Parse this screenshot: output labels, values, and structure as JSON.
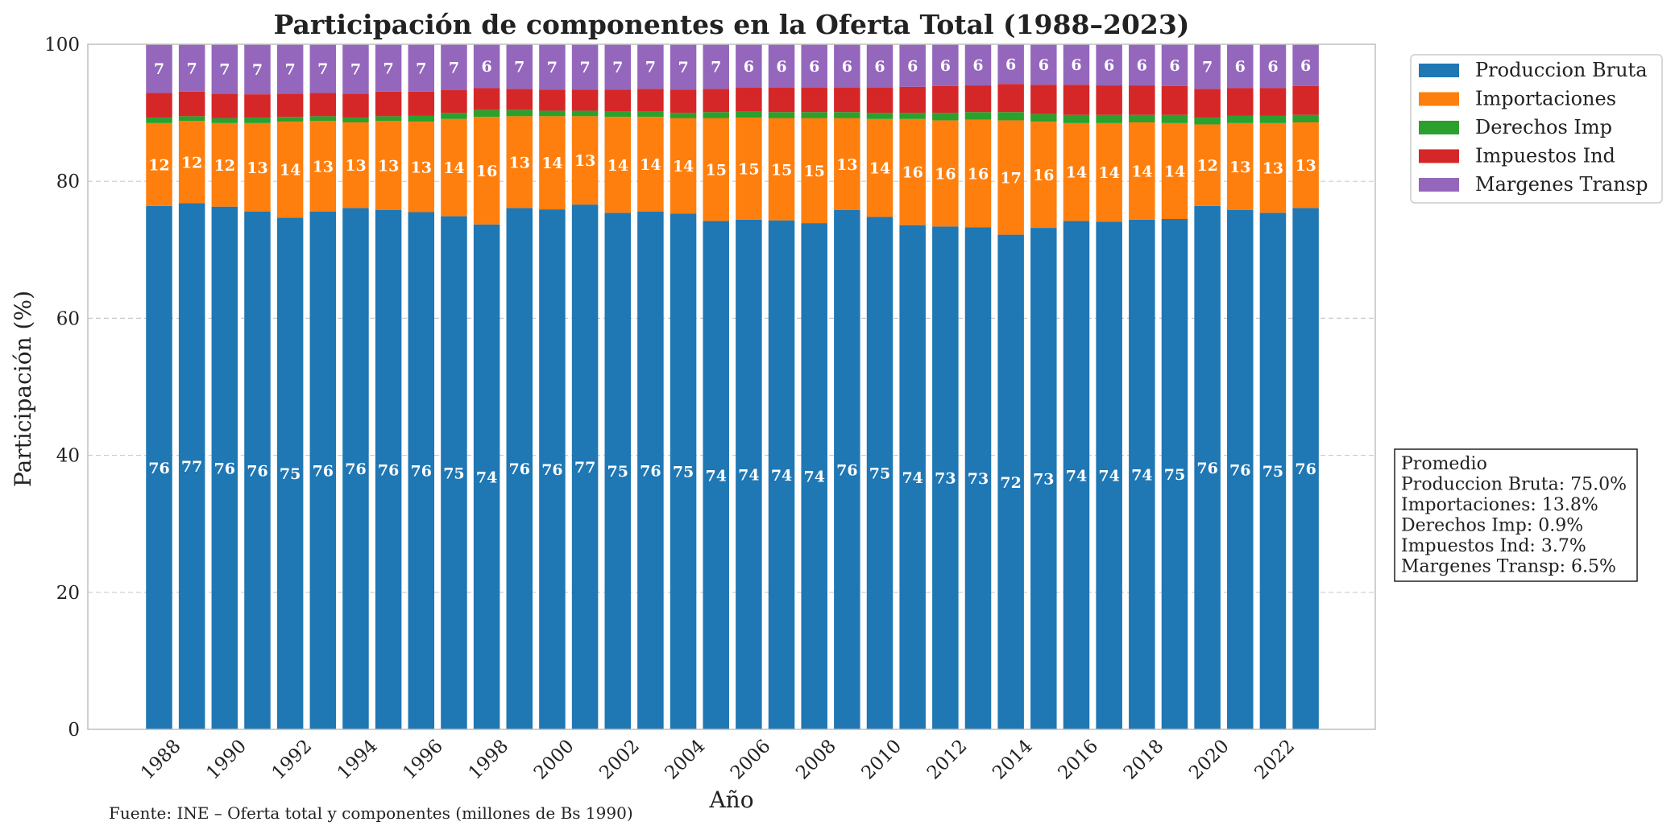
{
  "chart_data": {
    "type": "bar",
    "stacked": true,
    "title": "Participación de componentes en la Oferta Total (1988–2023)",
    "xlabel": "Año",
    "ylabel": "Participación (%)",
    "ylim": [
      0,
      100
    ],
    "yticks": [
      0,
      20,
      40,
      60,
      80,
      100
    ],
    "xtick_labels": [
      "1988",
      "1990",
      "1992",
      "1994",
      "1996",
      "1998",
      "2000",
      "2002",
      "2004",
      "2006",
      "2008",
      "2010",
      "2012",
      "2014",
      "2016",
      "2018",
      "2020",
      "2022"
    ],
    "grid": "horizontal dashed",
    "legend_position": "upper-right outside",
    "categories": [
      "1988",
      "1989",
      "1990",
      "1991",
      "1992",
      "1993",
      "1994",
      "1995",
      "1996",
      "1997",
      "1998",
      "1999",
      "2000",
      "2001",
      "2002",
      "2003",
      "2004",
      "2005",
      "2006",
      "2007",
      "2008",
      "2009",
      "2010",
      "2011",
      "2012",
      "2013",
      "2014",
      "2015",
      "2016",
      "2017",
      "2018",
      "2019",
      "2020",
      "2021",
      "2022",
      "2023"
    ],
    "series": [
      {
        "name": "Produccion Bruta",
        "color": "#1f77b4",
        "labels": true,
        "values": [
          76.4,
          76.8,
          76.3,
          75.6,
          74.7,
          75.6,
          76.1,
          75.8,
          75.5,
          74.9,
          73.7,
          76.1,
          75.9,
          76.6,
          75.4,
          75.6,
          75.3,
          74.2,
          74.4,
          74.3,
          73.9,
          75.8,
          74.8,
          73.6,
          73.4,
          73.3,
          72.2,
          73.2,
          74.2,
          74.1,
          74.4,
          74.5,
          76.4,
          75.8,
          75.4,
          76.1
        ]
      },
      {
        "name": "Importaciones",
        "color": "#ff7f0e",
        "labels": true,
        "values": [
          12.1,
          12.0,
          12.2,
          12.9,
          14.0,
          13.2,
          12.5,
          13.0,
          13.2,
          14.2,
          15.7,
          13.4,
          13.6,
          12.9,
          14.0,
          13.8,
          13.9,
          15.0,
          14.9,
          14.9,
          15.3,
          13.4,
          14.3,
          15.5,
          15.5,
          15.7,
          16.7,
          15.5,
          14.3,
          14.4,
          14.2,
          14.0,
          11.9,
          12.7,
          13.1,
          12.5
        ]
      },
      {
        "name": "Derechos Imp",
        "color": "#2ca02c",
        "labels": false,
        "values": [
          0.8,
          0.7,
          0.7,
          0.8,
          0.7,
          0.7,
          0.7,
          0.7,
          0.9,
          0.9,
          1.0,
          0.9,
          0.8,
          0.8,
          0.8,
          0.8,
          0.8,
          0.9,
          0.9,
          0.9,
          0.9,
          0.9,
          0.9,
          0.9,
          1.1,
          1.1,
          1.2,
          1.1,
          1.2,
          1.2,
          1.1,
          1.2,
          1.0,
          1.1,
          1.1,
          1.1
        ]
      },
      {
        "name": "Impuestos Ind",
        "color": "#d62728",
        "labels": false,
        "values": [
          3.6,
          3.6,
          3.6,
          3.4,
          3.4,
          3.4,
          3.5,
          3.6,
          3.5,
          3.3,
          3.2,
          3.1,
          3.1,
          3.1,
          3.2,
          3.3,
          3.4,
          3.4,
          3.5,
          3.6,
          3.6,
          3.6,
          3.7,
          3.8,
          3.9,
          3.9,
          4.1,
          4.3,
          4.4,
          4.3,
          4.3,
          4.2,
          4.2,
          4.0,
          4.0,
          4.2
        ]
      },
      {
        "name": "Margenes Transp",
        "color": "#9467bd",
        "labels": true,
        "values": [
          7.1,
          6.9,
          7.2,
          7.3,
          7.2,
          7.1,
          7.2,
          6.9,
          6.9,
          6.7,
          6.4,
          6.5,
          6.6,
          6.6,
          6.6,
          6.5,
          6.6,
          6.5,
          6.3,
          6.3,
          6.3,
          6.3,
          6.3,
          6.2,
          6.1,
          6.0,
          5.8,
          5.9,
          5.9,
          6.0,
          6.0,
          6.1,
          6.5,
          6.4,
          6.4,
          6.1
        ]
      }
    ],
    "averages": {
      "title": "Promedio",
      "lines": [
        "Produccion Bruta: 75.0%",
        "Importaciones: 13.8%",
        "Derechos Imp: 0.9%",
        "Impuestos Ind: 3.7%",
        "Margenes Transp: 6.5%"
      ]
    },
    "source": "Fuente: INE – Oferta total y componentes (millones de Bs 1990)"
  }
}
